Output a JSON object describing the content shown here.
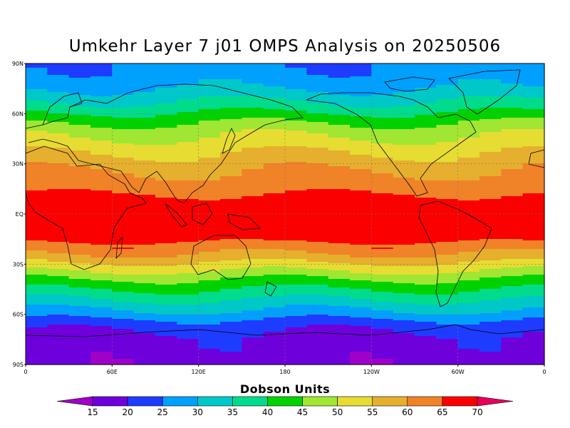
{
  "title": "Umkehr Layer 7 j01 OMPS Analysis on 20250506",
  "lat_labels": [
    "90N",
    "60N",
    "30N",
    "EQ",
    "30S",
    "60S",
    "90S"
  ],
  "lon_labels": [
    "0",
    "60E",
    "120E",
    "180",
    "120W",
    "60W",
    "0"
  ],
  "colorbar": {
    "title": "Dobson Units",
    "levels": [
      15,
      20,
      25,
      30,
      35,
      40,
      45,
      50,
      55,
      60,
      65,
      70
    ],
    "colors": [
      "#a000c8",
      "#6e00dc",
      "#1e3cff",
      "#00a0ff",
      "#00c8c8",
      "#00dc8c",
      "#00d200",
      "#a0e632",
      "#e6dc32",
      "#e6af2d",
      "#f08228",
      "#fa0000",
      "#e6005a"
    ]
  },
  "map_data": {
    "field": "ozone layer 7",
    "units": "Dobson Units",
    "zonal_profile_lat_to_du": [
      [
        -90,
        17
      ],
      [
        -75,
        18
      ],
      [
        -65,
        23
      ],
      [
        -60,
        28
      ],
      [
        -55,
        32
      ],
      [
        -50,
        36
      ],
      [
        -45,
        40
      ],
      [
        -40,
        44
      ],
      [
        -35,
        49
      ],
      [
        -30,
        54
      ],
      [
        -25,
        59
      ],
      [
        -20,
        63
      ],
      [
        -15,
        66
      ],
      [
        -5,
        68
      ],
      [
        5,
        67
      ],
      [
        12,
        65
      ],
      [
        20,
        62
      ],
      [
        30,
        58
      ],
      [
        40,
        53
      ],
      [
        50,
        48
      ],
      [
        57,
        43
      ],
      [
        63,
        38
      ],
      [
        70,
        33
      ],
      [
        78,
        28
      ],
      [
        90,
        26
      ]
    ]
  }
}
